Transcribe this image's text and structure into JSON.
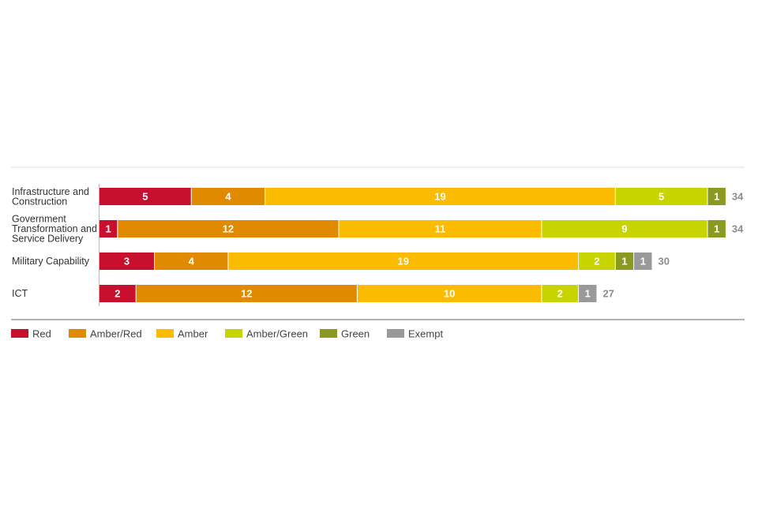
{
  "chart_data": {
    "type": "bar",
    "orientation": "horizontal",
    "stacked": true,
    "categories": [
      [
        "Infrastructure and",
        "Construction"
      ],
      [
        "Government",
        "Transformation and",
        "Service Delivery"
      ],
      [
        "Military Capability"
      ],
      [
        "ICT"
      ]
    ],
    "series": [
      {
        "name": "Red",
        "color": "#c8102e",
        "values": [
          5,
          1,
          3,
          2
        ]
      },
      {
        "name": "Amber/Red",
        "color": "#e08a00",
        "values": [
          4,
          12,
          4,
          12
        ]
      },
      {
        "name": "Amber",
        "color": "#fbbb00",
        "values": [
          19,
          11,
          19,
          10
        ]
      },
      {
        "name": "Amber/Green",
        "color": "#c8d400",
        "values": [
          5,
          9,
          2,
          2
        ]
      },
      {
        "name": "Green",
        "color": "#8a9a20",
        "values": [
          1,
          1,
          1,
          0
        ]
      },
      {
        "name": "Exempt",
        "color": "#999999",
        "values": [
          0,
          0,
          1,
          1
        ]
      }
    ],
    "totals": [
      34,
      34,
      30,
      27
    ],
    "xlim": [
      0,
      34
    ],
    "grid": false,
    "legend": "bottom-left"
  }
}
